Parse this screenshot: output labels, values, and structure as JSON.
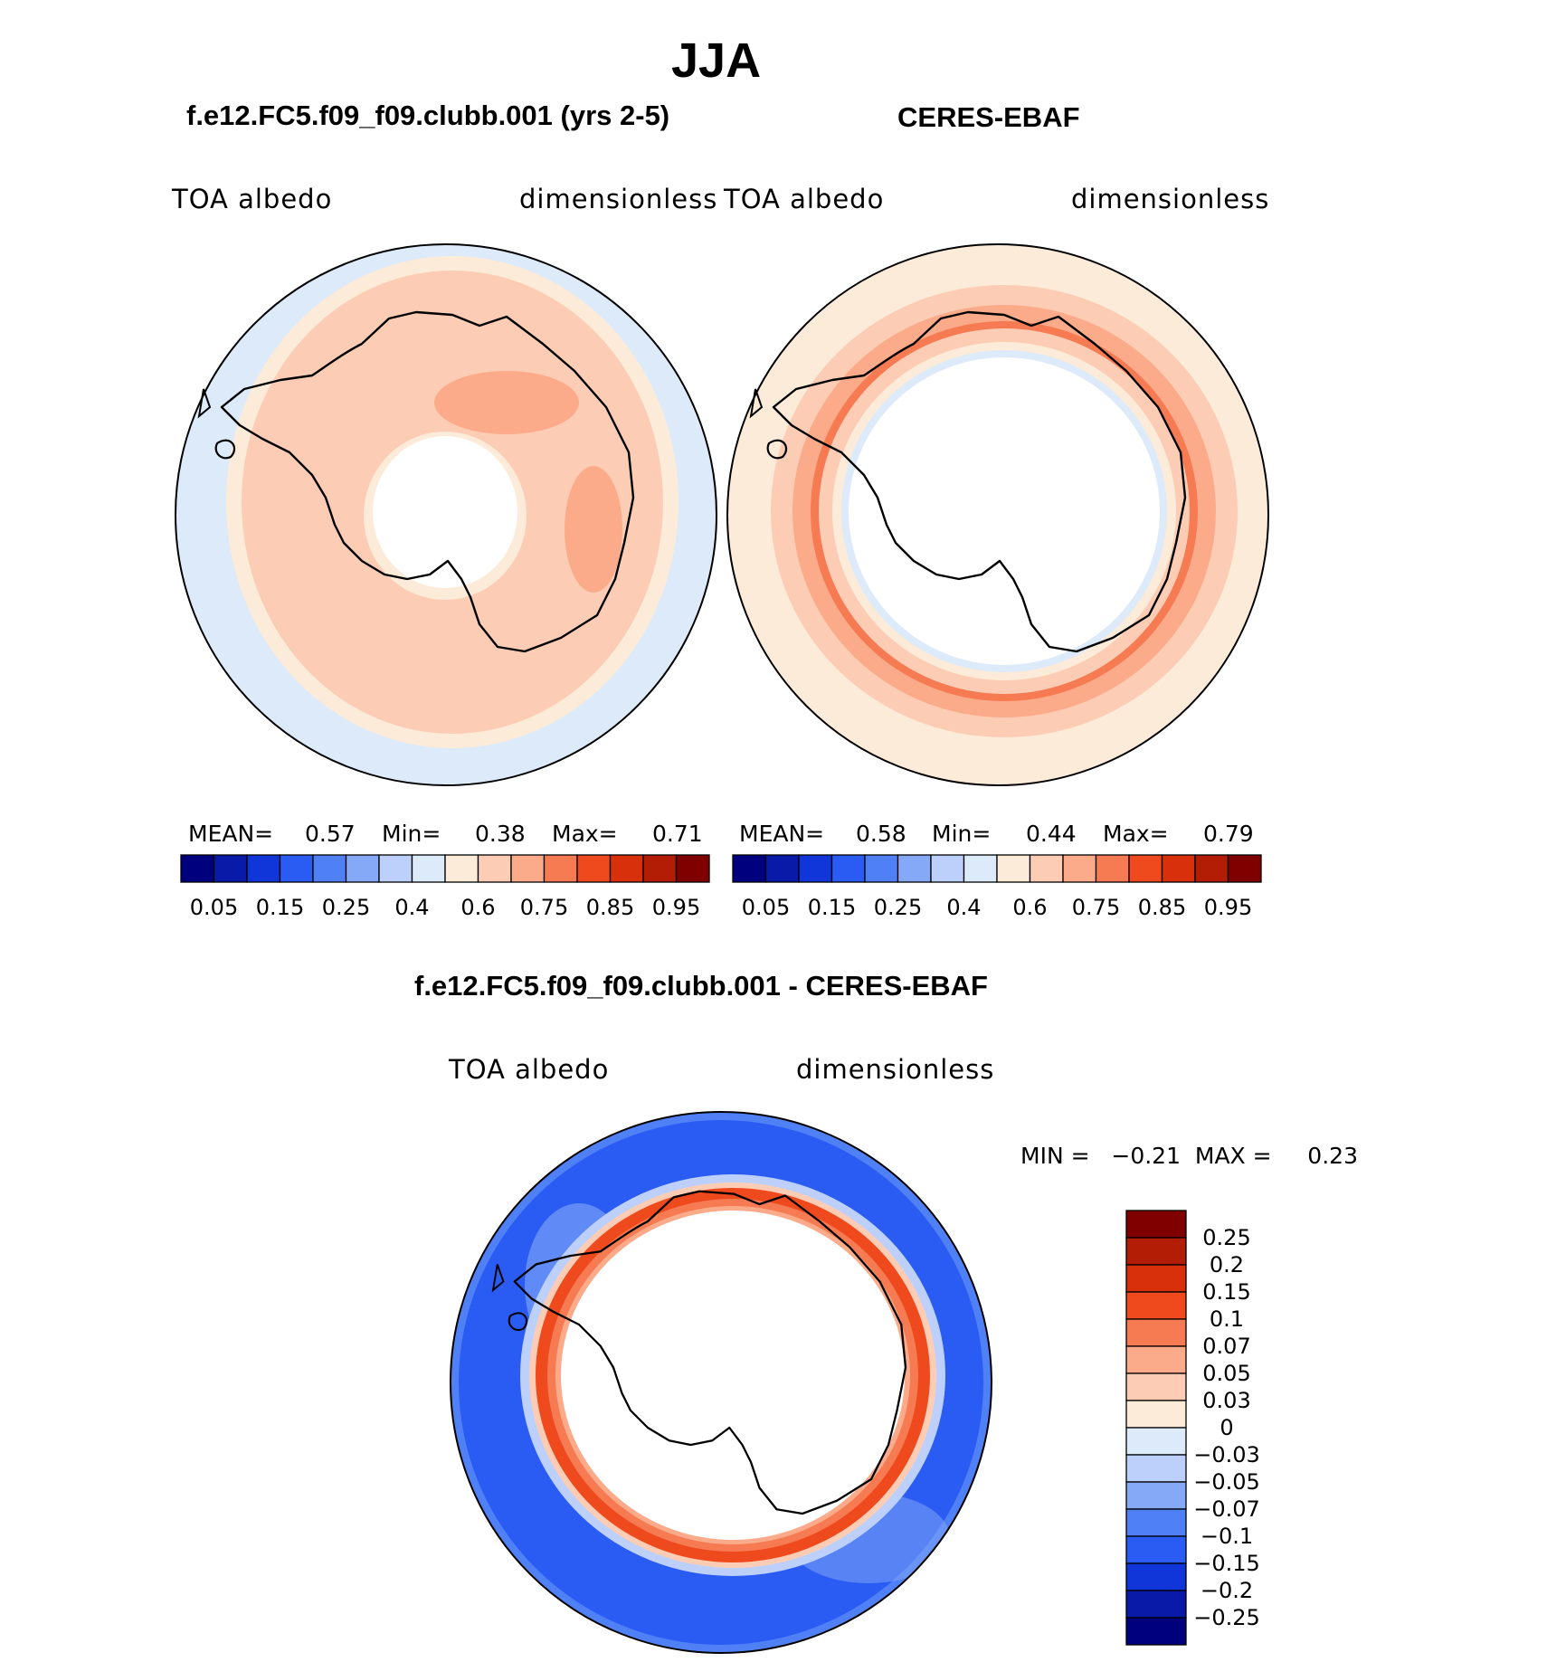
{
  "chart_data": {
    "type": "heatmap",
    "title": "JJA",
    "colors": {
      "abs_scale": [
        "#00007f",
        "#0a1aa8",
        "#1035d8",
        "#2a5cf3",
        "#4f80f5",
        "#86a9f7",
        "#bcd0fb",
        "#dceafa",
        "#fdebd9",
        "#fccdb4",
        "#fbab8a",
        "#f67a52",
        "#ef4a1e",
        "#d8300a",
        "#b41d05",
        "#800000"
      ],
      "diff_scale": [
        "#800000",
        "#b41d05",
        "#d8300a",
        "#ef4a1e",
        "#f67a52",
        "#fbab8a",
        "#fccdb4",
        "#fdebd9",
        "#dceafa",
        "#bcd0fb",
        "#86a9f7",
        "#4f80f5",
        "#2a5cf3",
        "#1035d8",
        "#0a1aa8",
        "#00007f"
      ]
    },
    "panels": [
      {
        "id": "model",
        "case_title": "f.e12.FC5.f09_f09.clubb.001 (yrs 2-5)",
        "left_label": "TOA  albedo",
        "right_label": "dimensionless",
        "mean_label": "MEAN=",
        "mean": "0.57",
        "min_label": "Min=",
        "min": "0.38",
        "max_label": "Max=",
        "max": "0.71",
        "ticks": [
          "0.05",
          "0.15",
          "0.25",
          "0.4",
          "0.6",
          "0.75",
          "0.85",
          "0.95"
        ]
      },
      {
        "id": "obs",
        "case_title": "CERES-EBAF",
        "left_label": "TOA  albedo",
        "right_label": "dimensionless",
        "mean_label": "MEAN=",
        "mean": "0.58",
        "min_label": "Min=",
        "min": "0.44",
        "max_label": "Max=",
        "max": "0.79",
        "ticks": [
          "0.05",
          "0.15",
          "0.25",
          "0.4",
          "0.6",
          "0.75",
          "0.85",
          "0.95"
        ]
      },
      {
        "id": "diff",
        "case_title": "f.e12.FC5.f09_f09.clubb.001 - CERES-EBAF",
        "left_label": "TOA  albedo",
        "right_label": "dimensionless",
        "minmax_text": "MIN =   −0.21  MAX =     0.23",
        "ticks": [
          "0.25",
          "0.2",
          "0.15",
          "0.1",
          "0.07",
          "0.05",
          "0.03",
          "0",
          "−0.03",
          "−0.05",
          "−0.07",
          "−0.1",
          "−0.15",
          "−0.2",
          "−0.25"
        ]
      }
    ]
  }
}
